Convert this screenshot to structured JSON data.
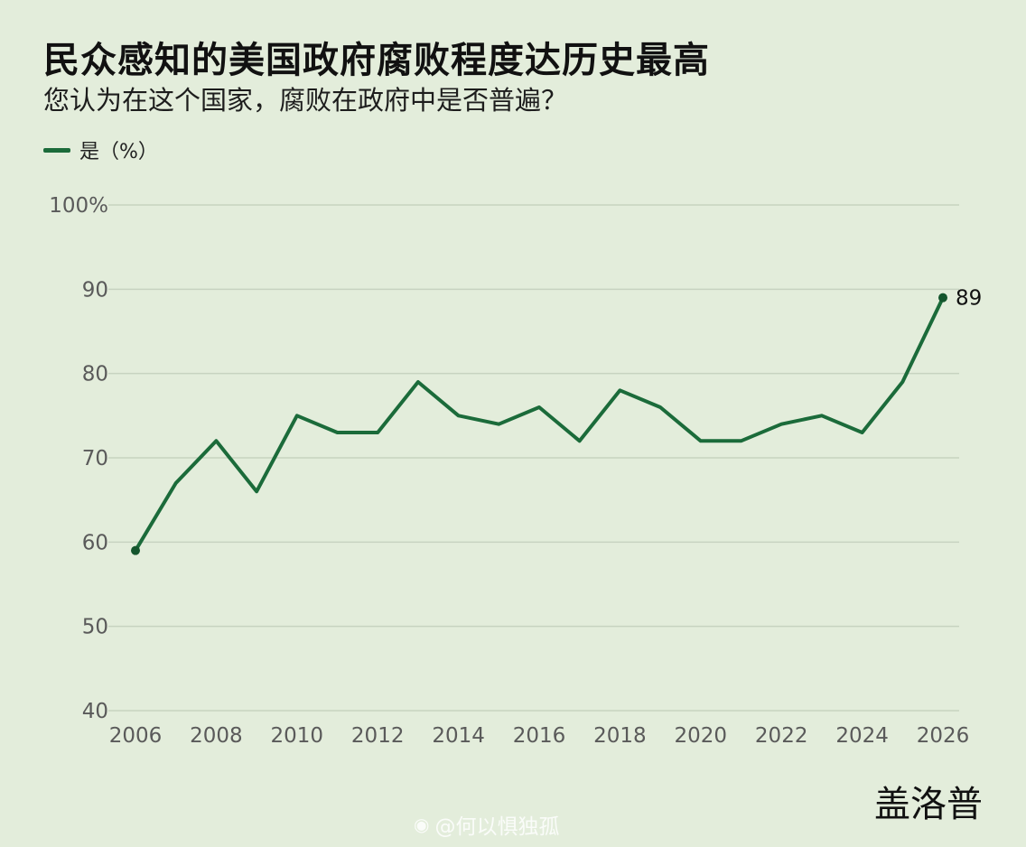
{
  "header": {
    "title": "民众感知的美国政府腐败程度达历史最高",
    "subtitle": "您认为在这个国家，腐败在政府中是否普遍？"
  },
  "legend": {
    "label": "是（%）",
    "color": "#1b6b3a"
  },
  "source": "盖洛普",
  "watermark": {
    "text": "@何以惧独孤",
    "icon": "weibo-icon"
  },
  "chart_data": {
    "type": "line",
    "x": [
      2006,
      2007,
      2008,
      2009,
      2010,
      2011,
      2012,
      2013,
      2014,
      2015,
      2016,
      2017,
      2018,
      2019,
      2020,
      2021,
      2022,
      2023,
      2024,
      2025,
      2026
    ],
    "series": [
      {
        "name": "是（%）",
        "values": [
          59,
          67,
          72,
          66,
          75,
          73,
          73,
          79,
          75,
          74,
          76,
          72,
          78,
          76,
          72,
          72,
          74,
          75,
          73,
          79,
          89
        ],
        "color": "#1b6b3a"
      }
    ],
    "xticks": [
      "2006",
      "2008",
      "2010",
      "2012",
      "2014",
      "2016",
      "2018",
      "2020",
      "2022",
      "2024",
      "2026"
    ],
    "yticks": [
      "40",
      "50",
      "60",
      "70",
      "80",
      "90",
      "100%"
    ],
    "ylim": [
      40,
      100
    ],
    "xlim": [
      2006,
      2026
    ],
    "grid": true,
    "endpoint_labels": [
      {
        "x": 2006,
        "y": 59,
        "label": ""
      },
      {
        "x": 2026,
        "y": 89,
        "label": "89"
      }
    ],
    "title": "民众感知的美国政府腐败程度达历史最高",
    "subtitle": "您认为在这个国家，腐败在政府中是否普遍？"
  }
}
